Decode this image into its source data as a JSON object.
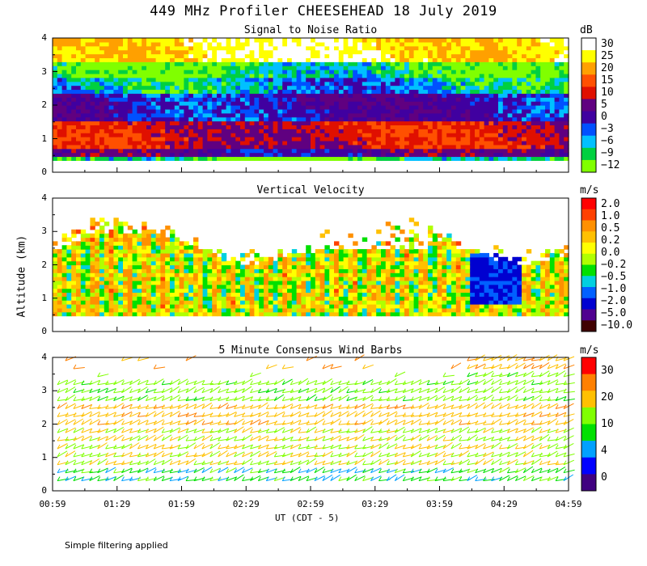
{
  "title": "449 MHz Profiler CHEESEHEAD 18 July 2019",
  "ylabel": "Altitude (km)",
  "xlabel": "UT  (CDT - 5)",
  "footnote": "Simple filtering applied",
  "colors": {
    "snr": [
      "#80ff00",
      "#00d040",
      "#00c0ff",
      "#0050ff",
      "#4000a0",
      "#600080",
      "#e01000",
      "#ff5000",
      "#ffa000",
      "#ffff00",
      "#ffffff"
    ],
    "vv": [
      "#400000",
      "#500090",
      "#0000d0",
      "#0060ff",
      "#00d0e0",
      "#00e000",
      "#b0ff00",
      "#ffff00",
      "#ffc000",
      "#ff9000",
      "#ff4000",
      "#ff0000"
    ],
    "ws": [
      "#400080",
      "#0000ff",
      "#00a0ff",
      "#00e000",
      "#80ff00",
      "#ffc000",
      "#ff8000",
      "#ff0000"
    ]
  },
  "chart_data": [
    {
      "type": "heatmap",
      "title": "Signal to Noise Ratio",
      "colorbar_unit": "dB",
      "colorbar_ticks": [
        "30",
        "25",
        "20",
        "15",
        "10",
        "5",
        "0",
        "−3",
        "−6",
        "−9",
        "−12"
      ],
      "x_tick_labels": [
        "00:59",
        "01:29",
        "01:59",
        "02:29",
        "02:59",
        "03:29",
        "03:59",
        "04:29",
        "04:59"
      ],
      "y_tick_labels": [
        "0",
        "1",
        "2",
        "3",
        "4"
      ],
      "ylim": [
        0,
        4
      ],
      "profile": [
        {
          "z_top": 0.5,
          "value": -9
        },
        {
          "z_top": 0.7,
          "value": 5
        },
        {
          "z_top": 1.5,
          "value": 12
        },
        {
          "z_top": 2.3,
          "value": 2
        },
        {
          "z_top": 2.8,
          "value": -4
        },
        {
          "z_top": 3.3,
          "value": -8
        },
        {
          "z_top": 4.1,
          "value": 28
        }
      ]
    },
    {
      "type": "heatmap",
      "title": "Vertical Velocity",
      "colorbar_unit": "m/s",
      "colorbar_ticks": [
        "2.0",
        "1.0",
        "0.5",
        "0.2",
        "0.0",
        "−0.2",
        "−0.5",
        "−1.0",
        "−2.0",
        "−5.0",
        "−10.0"
      ],
      "x_tick_labels": [
        "00:59",
        "01:29",
        "01:59",
        "02:29",
        "02:59",
        "03:29",
        "03:59",
        "04:29",
        "04:59"
      ],
      "y_tick_labels": [
        "0",
        "1",
        "2",
        "3",
        "4"
      ],
      "ylim": [
        0,
        4
      ],
      "profile": [
        {
          "z_top": 0.5,
          "value": null
        },
        {
          "z_top": 2.6,
          "value": 0.1
        },
        {
          "z_top": 3.6,
          "value": 0.3
        },
        {
          "z_top": 4.1,
          "value": null
        }
      ]
    },
    {
      "type": "scatter",
      "title": "5 Minute Consensus Wind Barbs",
      "colorbar_unit": "m/s",
      "colorbar_ticks": [
        "30",
        "20",
        "10",
        "4",
        "0"
      ],
      "x_tick_labels": [
        "00:59",
        "01:29",
        "01:59",
        "02:29",
        "02:59",
        "03:29",
        "03:59",
        "04:29",
        "04:59"
      ],
      "y_tick_labels": [
        "0",
        "1",
        "2",
        "3",
        "4"
      ],
      "ylim": [
        0,
        4
      ],
      "profile": [
        {
          "z_top": 0.6,
          "speed": 8
        },
        {
          "z_top": 1.8,
          "speed": 15
        },
        {
          "z_top": 2.5,
          "speed": 18
        },
        {
          "z_top": 3.5,
          "speed": 12
        },
        {
          "z_top": 4.0,
          "speed": 20
        }
      ]
    }
  ]
}
